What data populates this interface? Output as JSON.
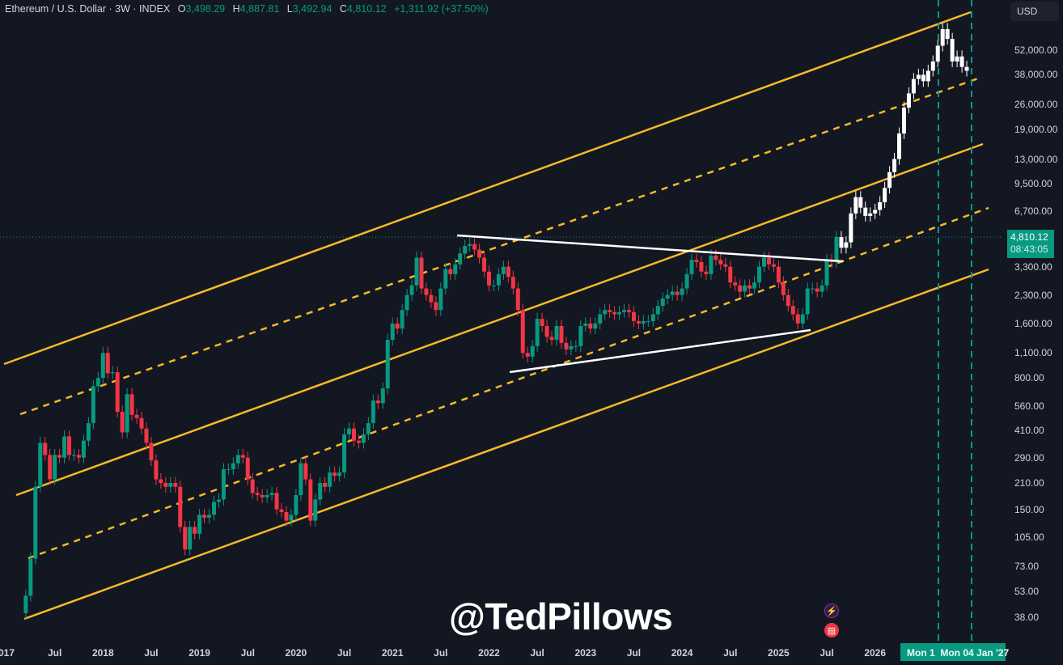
{
  "header": {
    "symbol": "Ethereum / U.S. Dollar · 3W · INDEX",
    "open_label": "O",
    "open": "3,498.29",
    "high_label": "H",
    "high": "4,887.81",
    "low_label": "L",
    "low": "3,492.94",
    "close_label": "C",
    "close": "4,810.12",
    "change": "+1,311.92 (+37.50%)"
  },
  "currency": "USD",
  "current_price": {
    "price": "4,810.12",
    "countdown": "08:43:05"
  },
  "watermark": "@TedPillows",
  "time_cursor": {
    "label1": "Mon 1",
    "label2": "Mon 04 Jan '27"
  },
  "colors": {
    "background": "#131722",
    "up": "#089981",
    "down": "#f23645",
    "channel": "#f7b928",
    "trendline": "#ffffff",
    "projection": "#ffffff",
    "marker": "#089981"
  },
  "chart_data": {
    "type": "candlestick",
    "title": "Ethereum / U.S. Dollar · 3W · INDEX",
    "y_scale": "log",
    "ylim": [
      30,
      80000
    ],
    "xlim": [
      2017.0,
      2027.0
    ],
    "grid": false,
    "price_ticks": [
      "52,000.00",
      "38,000.00",
      "26,000.00",
      "19,000.00",
      "13,000.00",
      "9,500.00",
      "6,700.00",
      "3,300.00",
      "2,300.00",
      "1,600.00",
      "1,100.00",
      "800.00",
      "560.00",
      "410.00",
      "290.00",
      "210.00",
      "150.00",
      "105.00",
      "73.00",
      "53.00",
      "38.00"
    ],
    "price_tick_values": [
      52000,
      38000,
      26000,
      19000,
      13000,
      9500,
      6700,
      3300,
      2300,
      1600,
      1100,
      800,
      560,
      410,
      290,
      210,
      150,
      105,
      73,
      53,
      38
    ],
    "time_ticks": [
      [
        "017",
        2017.0
      ],
      [
        "Jul",
        2017.5
      ],
      [
        "2018",
        2018.0
      ],
      [
        "Jul",
        2018.5
      ],
      [
        "2019",
        2019.0
      ],
      [
        "Jul",
        2019.5
      ],
      [
        "2020",
        2020.0
      ],
      [
        "Jul",
        2020.5
      ],
      [
        "2021",
        2021.0
      ],
      [
        "Jul",
        2021.5
      ],
      [
        "2022",
        2022.0
      ],
      [
        "Jul",
        2022.5
      ],
      [
        "2023",
        2023.0
      ],
      [
        "Jul",
        2023.5
      ],
      [
        "2024",
        2024.0
      ],
      [
        "Jul",
        2024.5
      ],
      [
        "2025",
        2025.0
      ],
      [
        "Jul",
        2025.5
      ],
      [
        "2026",
        2026.0
      ]
    ],
    "closes": [
      [
        2017.15,
        40
      ],
      [
        2017.2,
        50
      ],
      [
        2017.25,
        80
      ],
      [
        2017.3,
        200
      ],
      [
        2017.35,
        350
      ],
      [
        2017.4,
        300
      ],
      [
        2017.45,
        220
      ],
      [
        2017.5,
        300
      ],
      [
        2017.55,
        290
      ],
      [
        2017.6,
        380
      ],
      [
        2017.65,
        300
      ],
      [
        2017.7,
        300
      ],
      [
        2017.75,
        290
      ],
      [
        2017.8,
        360
      ],
      [
        2017.85,
        450
      ],
      [
        2017.9,
        720
      ],
      [
        2017.95,
        800
      ],
      [
        2018.0,
        1100
      ],
      [
        2018.05,
        850
      ],
      [
        2018.1,
        860
      ],
      [
        2018.15,
        520
      ],
      [
        2018.2,
        400
      ],
      [
        2018.25,
        650
      ],
      [
        2018.3,
        500
      ],
      [
        2018.35,
        480
      ],
      [
        2018.4,
        420
      ],
      [
        2018.45,
        350
      ],
      [
        2018.5,
        280
      ],
      [
        2018.55,
        220
      ],
      [
        2018.6,
        210
      ],
      [
        2018.65,
        200
      ],
      [
        2018.7,
        210
      ],
      [
        2018.75,
        200
      ],
      [
        2018.8,
        120
      ],
      [
        2018.85,
        90
      ],
      [
        2018.9,
        120
      ],
      [
        2018.95,
        110
      ],
      [
        2019.0,
        140
      ],
      [
        2019.05,
        135
      ],
      [
        2019.1,
        140
      ],
      [
        2019.15,
        165
      ],
      [
        2019.2,
        170
      ],
      [
        2019.25,
        250
      ],
      [
        2019.3,
        250
      ],
      [
        2019.35,
        270
      ],
      [
        2019.4,
        300
      ],
      [
        2019.45,
        290
      ],
      [
        2019.5,
        220
      ],
      [
        2019.55,
        185
      ],
      [
        2019.6,
        180
      ],
      [
        2019.65,
        175
      ],
      [
        2019.7,
        180
      ],
      [
        2019.75,
        185
      ],
      [
        2019.8,
        150
      ],
      [
        2019.85,
        145
      ],
      [
        2019.9,
        130
      ],
      [
        2019.95,
        140
      ],
      [
        2020.0,
        180
      ],
      [
        2020.05,
        270
      ],
      [
        2020.1,
        220
      ],
      [
        2020.15,
        130
      ],
      [
        2020.2,
        170
      ],
      [
        2020.25,
        210
      ],
      [
        2020.3,
        200
      ],
      [
        2020.35,
        240
      ],
      [
        2020.4,
        230
      ],
      [
        2020.45,
        240
      ],
      [
        2020.5,
        390
      ],
      [
        2020.55,
        420
      ],
      [
        2020.6,
        360
      ],
      [
        2020.65,
        350
      ],
      [
        2020.7,
        390
      ],
      [
        2020.75,
        450
      ],
      [
        2020.8,
        600
      ],
      [
        2020.85,
        580
      ],
      [
        2020.9,
        700
      ],
      [
        2020.95,
        1300
      ],
      [
        2021.0,
        1600
      ],
      [
        2021.05,
        1500
      ],
      [
        2021.1,
        1900
      ],
      [
        2021.15,
        2300
      ],
      [
        2021.2,
        2600
      ],
      [
        2021.25,
        3700
      ],
      [
        2021.3,
        2500
      ],
      [
        2021.35,
        2300
      ],
      [
        2021.4,
        2100
      ],
      [
        2021.45,
        1900
      ],
      [
        2021.5,
        2500
      ],
      [
        2021.55,
        3200
      ],
      [
        2021.6,
        3000
      ],
      [
        2021.65,
        3400
      ],
      [
        2021.7,
        3900
      ],
      [
        2021.75,
        4300
      ],
      [
        2021.8,
        4400
      ],
      [
        2021.85,
        4100
      ],
      [
        2021.9,
        3700
      ],
      [
        2021.95,
        3100
      ],
      [
        2022.0,
        2600
      ],
      [
        2022.05,
        2600
      ],
      [
        2022.1,
        3000
      ],
      [
        2022.15,
        3300
      ],
      [
        2022.2,
        2900
      ],
      [
        2022.25,
        2500
      ],
      [
        2022.3,
        1900
      ],
      [
        2022.35,
        1100
      ],
      [
        2022.4,
        1050
      ],
      [
        2022.45,
        1200
      ],
      [
        2022.5,
        1700
      ],
      [
        2022.55,
        1550
      ],
      [
        2022.6,
        1350
      ],
      [
        2022.65,
        1300
      ],
      [
        2022.7,
        1550
      ],
      [
        2022.75,
        1250
      ],
      [
        2022.8,
        1150
      ],
      [
        2022.85,
        1200
      ],
      [
        2022.9,
        1200
      ],
      [
        2022.95,
        1550
      ],
      [
        2023.0,
        1600
      ],
      [
        2023.05,
        1500
      ],
      [
        2023.1,
        1600
      ],
      [
        2023.15,
        1800
      ],
      [
        2023.2,
        1900
      ],
      [
        2023.25,
        1850
      ],
      [
        2023.3,
        1800
      ],
      [
        2023.35,
        1850
      ],
      [
        2023.4,
        1900
      ],
      [
        2023.45,
        1850
      ],
      [
        2023.5,
        1650
      ],
      [
        2023.55,
        1600
      ],
      [
        2023.6,
        1650
      ],
      [
        2023.65,
        1650
      ],
      [
        2023.7,
        1800
      ],
      [
        2023.75,
        2000
      ],
      [
        2023.8,
        2200
      ],
      [
        2023.85,
        2300
      ],
      [
        2023.9,
        2400
      ],
      [
        2023.95,
        2300
      ],
      [
        2024.0,
        2500
      ],
      [
        2024.05,
        3000
      ],
      [
        2024.1,
        3600
      ],
      [
        2024.15,
        3500
      ],
      [
        2024.2,
        3100
      ],
      [
        2024.25,
        3000
      ],
      [
        2024.3,
        3800
      ],
      [
        2024.35,
        3600
      ],
      [
        2024.4,
        3400
      ],
      [
        2024.45,
        3300
      ],
      [
        2024.5,
        2700
      ],
      [
        2024.55,
        2600
      ],
      [
        2024.6,
        2400
      ],
      [
        2024.65,
        2600
      ],
      [
        2024.7,
        2500
      ],
      [
        2024.75,
        2700
      ],
      [
        2024.8,
        3300
      ],
      [
        2024.85,
        3700
      ],
      [
        2024.9,
        3400
      ],
      [
        2024.95,
        3300
      ],
      [
        2025.0,
        2700
      ],
      [
        2025.05,
        2300
      ],
      [
        2025.1,
        2000
      ],
      [
        2025.15,
        1800
      ],
      [
        2025.2,
        1600
      ],
      [
        2025.25,
        1800
      ],
      [
        2025.3,
        2500
      ],
      [
        2025.35,
        2500
      ],
      [
        2025.4,
        2400
      ],
      [
        2025.45,
        2600
      ],
      [
        2025.5,
        3600
      ],
      [
        2025.55,
        3500
      ],
      [
        2025.6,
        4810
      ]
    ],
    "projection": [
      [
        2025.6,
        4810
      ],
      [
        2025.65,
        4200
      ],
      [
        2025.7,
        4500
      ],
      [
        2025.75,
        6500
      ],
      [
        2025.8,
        8000
      ],
      [
        2025.85,
        7000
      ],
      [
        2025.9,
        6300
      ],
      [
        2025.95,
        6500
      ],
      [
        2026.0,
        6800
      ],
      [
        2026.05,
        7500
      ],
      [
        2026.1,
        9000
      ],
      [
        2026.15,
        11000
      ],
      [
        2026.2,
        13000
      ],
      [
        2026.25,
        18000
      ],
      [
        2026.3,
        25000
      ],
      [
        2026.35,
        30000
      ],
      [
        2026.4,
        36000
      ],
      [
        2026.45,
        38000
      ],
      [
        2026.5,
        35000
      ],
      [
        2026.55,
        40000
      ],
      [
        2026.6,
        45000
      ],
      [
        2026.65,
        55000
      ],
      [
        2026.7,
        68000
      ],
      [
        2026.75,
        60000
      ],
      [
        2026.8,
        45000
      ],
      [
        2026.85,
        48000
      ],
      [
        2026.9,
        42000
      ],
      [
        2026.95,
        40000
      ]
    ]
  }
}
